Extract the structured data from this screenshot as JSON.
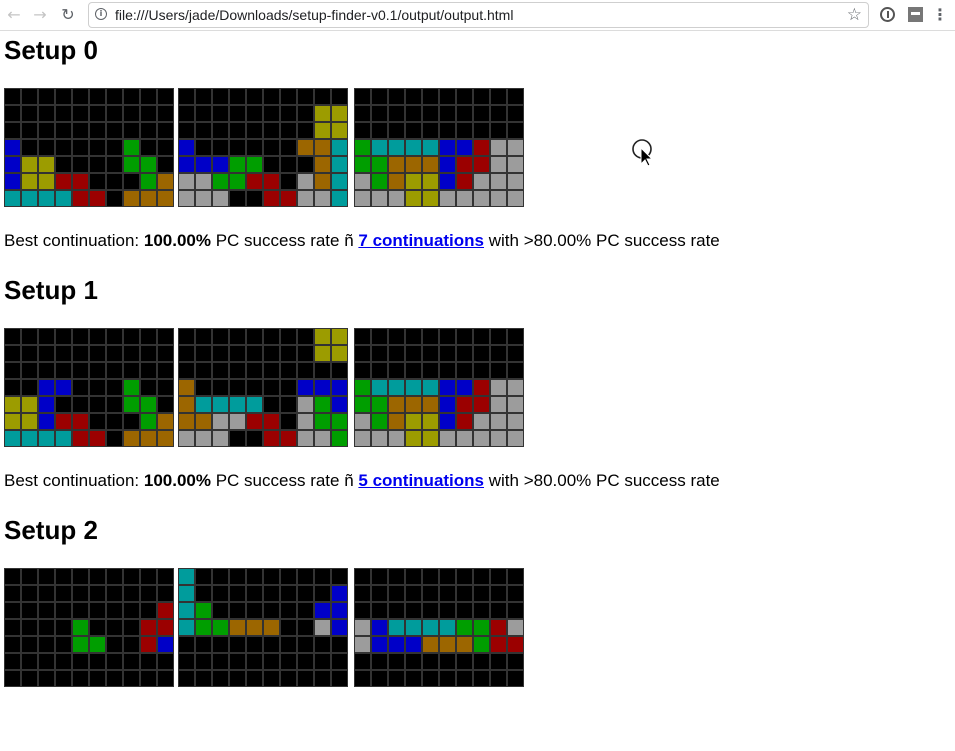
{
  "browser": {
    "url": "file:///Users/jade/Downloads/setup-finder-v0.1/output/output.html",
    "icons": {
      "back": "back-arrow-icon",
      "forward": "forward-arrow-icon",
      "reload": "reload-icon",
      "info": "info-icon",
      "star": "bookmark-star-icon",
      "menu": "kebab-menu-icon"
    }
  },
  "palette": {
    "K": "#000000",
    "B": "#0000c8",
    "G": "#009e00",
    "Y": "#9c9c00",
    "R": "#9b0000",
    "O": "#9c6600",
    "C": "#009c9c",
    "W": "#9c9c9c"
  },
  "setups": [
    {
      "title": "Setup 0",
      "boards": [
        [
          "KKKKKKKKKK",
          "KKKKKKKKKK",
          "KKKKKKKKKK",
          "BKKKKKKGKK",
          "BYYKKKKGGK",
          "BYYRRKKKGO",
          "CCCCRRKOOO"
        ],
        [
          "KKKKKKKKKK",
          "KKKKKKKKYY",
          "KKKKKKKKYY",
          "BKKKKKKOOC",
          "BBBGGKKKOC",
          "WWGGRRKWOC",
          "WWWKKRRWWC"
        ],
        [
          "KKKKKKKKKK",
          "KKKKKKKKKK",
          "KKKKKKKKKK",
          "GCCCCBBRWW",
          "GGOOOBRRWW",
          "WGOYYBRWWW",
          "WWWYYWWWWW"
        ]
      ],
      "summary": {
        "prefix": "Best continuation: ",
        "rate": "100.00%",
        "middle": " PC success rate ñ ",
        "link": "7 continuations",
        "suffix": " with >80.00% PC success rate"
      }
    },
    {
      "title": "Setup 1",
      "boards": [
        [
          "KKKKKKKKKK",
          "KKKKKKKKKK",
          "KKKKKKKKKK",
          "KKBBKKKGKK",
          "YYBKKKKGGK",
          "YYBRRKKKGO",
          "CCCCRRKOOO"
        ],
        [
          "KKKKKKKKYY",
          "KKKKKKKKYY",
          "KKKKKKKKKK",
          "OKKKKKKBBB",
          "OCCCCKKWGB",
          "OOWWRRKWGG",
          "WWWKKRRWWG"
        ],
        [
          "KKKKKKKKKK",
          "KKKKKKKKKK",
          "KKKKKKKKKK",
          "GCCCCBBRWW",
          "GGOOOBRRWW",
          "WGOYYBRWWW",
          "WWWYYWWWWW"
        ]
      ],
      "summary": {
        "prefix": "Best continuation: ",
        "rate": "100.00%",
        "middle": " PC success rate ñ ",
        "link": "5 continuations",
        "suffix": " with >80.00% PC success rate"
      }
    },
    {
      "title": "Setup 2",
      "boards": [
        [
          "KKKKKKKKKK",
          "KKKKKKKKKK",
          "KKKKKKKKKR",
          "KKKKGKKKRR",
          "KKKKGGKKRB",
          "KKKKKKKKKK",
          "KKKKKKKKKK"
        ],
        [
          "CKKKKKKKKK",
          "CKKKKKKKKB",
          "CGKKKKKKBB",
          "CGGOOOKKWB",
          "KKKKKKKKKK",
          "KKKKKKKKKK",
          "KKKKKKKKKK"
        ],
        [
          "KKKKKKKKKK",
          "KKKKKKKKKK",
          "KKKKKKKKKK",
          "WBCCCCGGRW",
          "WBBBOOOGRR",
          "KKKKKKKKKK",
          "KKKKKKKKKK"
        ]
      ],
      "summary": null
    }
  ]
}
